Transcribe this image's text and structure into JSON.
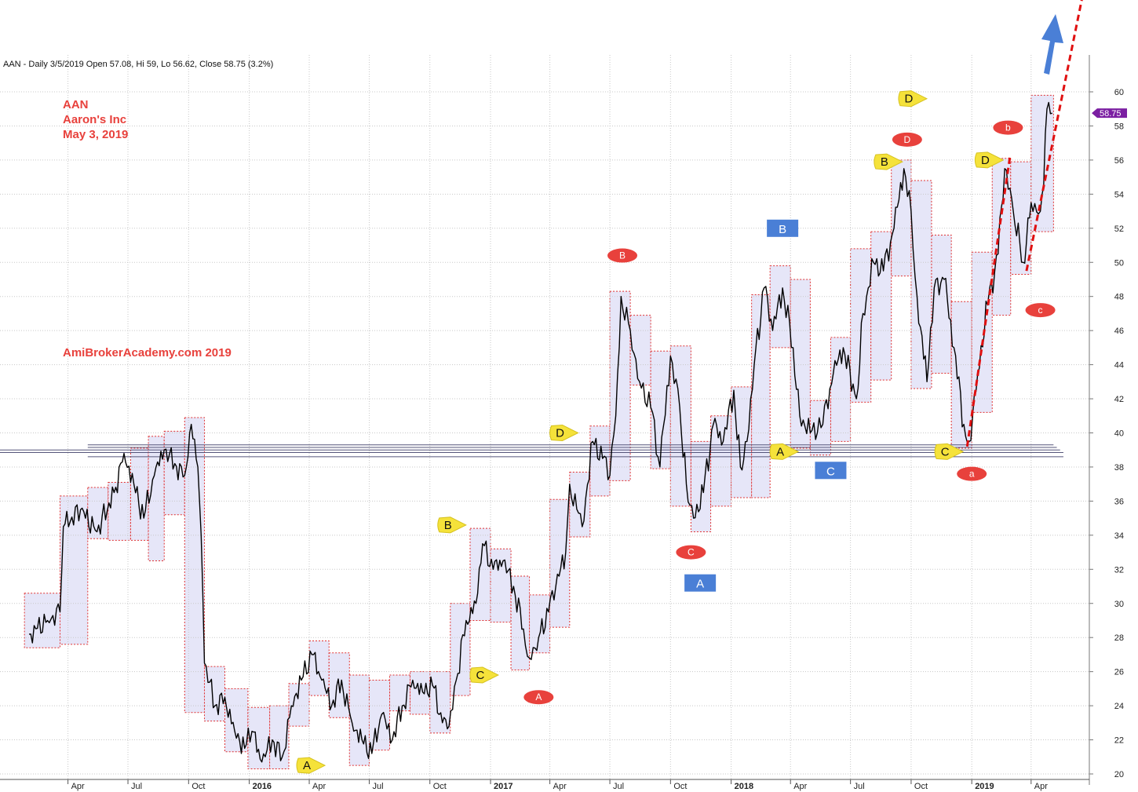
{
  "header": "AAN - Daily 3/5/2019 Open 57.08, Hi 59, Lo 56.62, Close 58.75 (3.2%)",
  "annotations": {
    "ticker": "AAN",
    "company": "Aaron's Inc",
    "date": "May 3, 2019",
    "watermark": "AmiBrokerAcademy.com  2019"
  },
  "colors": {
    "price": "#000000",
    "box_fill": "#e6e6f8",
    "box_border": "#e03030",
    "label_red": "#e8413c",
    "label_yellow": "#f5e23a",
    "label_blue": "#4a7fd6",
    "trend": "#e01010",
    "arrow": "#4a7fd6",
    "last_price": "#7b1fa2",
    "support": "#55557a"
  },
  "chart_data": {
    "type": "line",
    "title": "AAN - Daily 3/5/2019 Open 57.08, Hi 59, Lo 56.62, Close 58.75 (3.2%)",
    "ylim": [
      19.3,
      61.5
    ],
    "y_ticks": [
      20,
      22,
      24,
      26,
      28,
      30,
      32,
      34,
      36,
      38,
      40,
      42,
      44,
      46,
      48,
      50,
      52,
      54,
      56,
      58,
      60
    ],
    "x_ticks": [
      "Apr",
      "Jul",
      "Oct",
      "2016",
      "Apr",
      "Jul",
      "Oct",
      "2017",
      "Apr",
      "Jul",
      "Oct",
      "2018",
      "Apr",
      "Jul",
      "Oct",
      "2019",
      "Apr"
    ],
    "x_tick_dates": [
      "2015-04-01",
      "2015-07-01",
      "2015-10-01",
      "2016-01-01",
      "2016-04-01",
      "2016-07-01",
      "2016-10-01",
      "2017-01-01",
      "2017-04-01",
      "2017-07-01",
      "2017-10-01",
      "2018-01-01",
      "2018-04-01",
      "2018-07-01",
      "2018-10-01",
      "2019-01-01",
      "2019-04-01"
    ],
    "grid": true,
    "last_price": "58.75",
    "series": [
      {
        "name": "AAN",
        "points": [
          [
            "2015-02-01",
            28.2
          ],
          [
            "2015-03-01",
            29.0
          ],
          [
            "2015-03-20",
            29.5
          ],
          [
            "2015-03-25",
            34.5
          ],
          [
            "2015-04-20",
            35.5
          ],
          [
            "2015-05-15",
            34.2
          ],
          [
            "2015-06-10",
            36.5
          ],
          [
            "2015-06-25",
            38.8
          ],
          [
            "2015-07-10",
            37.0
          ],
          [
            "2015-07-25",
            35.0
          ],
          [
            "2015-08-10",
            37.5
          ],
          [
            "2015-08-25",
            39.0
          ],
          [
            "2015-09-10",
            38.2
          ],
          [
            "2015-09-25",
            37.5
          ],
          [
            "2015-10-05",
            40.5
          ],
          [
            "2015-10-15",
            38.0
          ],
          [
            "2015-10-20",
            34.0
          ],
          [
            "2015-10-25",
            26.5
          ],
          [
            "2015-11-10",
            24.0
          ],
          [
            "2015-11-25",
            24.5
          ],
          [
            "2015-12-10",
            22.5
          ],
          [
            "2015-12-25",
            21.5
          ],
          [
            "2016-01-05",
            22.5
          ],
          [
            "2016-01-20",
            20.7
          ],
          [
            "2016-02-05",
            22.0
          ],
          [
            "2016-02-20",
            21.0
          ],
          [
            "2016-03-05",
            24.0
          ],
          [
            "2016-03-20",
            25.5
          ],
          [
            "2016-04-05",
            27.0
          ],
          [
            "2016-04-20",
            25.5
          ],
          [
            "2016-05-05",
            24.0
          ],
          [
            "2016-05-20",
            25.5
          ],
          [
            "2016-06-05",
            23.0
          ],
          [
            "2016-06-20",
            22.0
          ],
          [
            "2016-07-05",
            21.2
          ],
          [
            "2016-07-20",
            23.5
          ],
          [
            "2016-08-05",
            22.0
          ],
          [
            "2016-08-20",
            24.0
          ],
          [
            "2016-09-05",
            25.5
          ],
          [
            "2016-09-20",
            24.8
          ],
          [
            "2016-10-05",
            25.2
          ],
          [
            "2016-10-20",
            23.0
          ],
          [
            "2016-10-30",
            22.8
          ],
          [
            "2016-11-10",
            25.5
          ],
          [
            "2016-11-25",
            29.0
          ],
          [
            "2016-12-10",
            30.0
          ],
          [
            "2016-12-20",
            33.5
          ],
          [
            "2017-01-05",
            32.0
          ],
          [
            "2017-01-20",
            32.5
          ],
          [
            "2017-02-05",
            31.0
          ],
          [
            "2017-02-20",
            28.5
          ],
          [
            "2017-03-01",
            26.8
          ],
          [
            "2017-03-15",
            28.0
          ],
          [
            "2017-03-30",
            29.5
          ],
          [
            "2017-04-10",
            31.0
          ],
          [
            "2017-04-25",
            33.0
          ],
          [
            "2017-05-01",
            37.0
          ],
          [
            "2017-05-20",
            34.5
          ],
          [
            "2017-06-05",
            39.5
          ],
          [
            "2017-06-20",
            38.5
          ],
          [
            "2017-07-01",
            37.5
          ],
          [
            "2017-07-10",
            41.0
          ],
          [
            "2017-07-18",
            48.0
          ],
          [
            "2017-08-01",
            46.0
          ],
          [
            "2017-08-15",
            43.0
          ],
          [
            "2017-09-01",
            41.5
          ],
          [
            "2017-09-15",
            38.0
          ],
          [
            "2017-10-01",
            44.5
          ],
          [
            "2017-10-15",
            41.5
          ],
          [
            "2017-10-25",
            37.0
          ],
          [
            "2017-11-05",
            35.0
          ],
          [
            "2017-11-20",
            36.5
          ],
          [
            "2017-12-05",
            40.5
          ],
          [
            "2017-12-20",
            39.5
          ],
          [
            "2018-01-05",
            42.5
          ],
          [
            "2018-01-15",
            38.0
          ],
          [
            "2018-01-25",
            39.5
          ],
          [
            "2018-02-05",
            44.0
          ],
          [
            "2018-02-20",
            48.5
          ],
          [
            "2018-03-05",
            46.0
          ],
          [
            "2018-03-20",
            48.5
          ],
          [
            "2018-04-05",
            45.0
          ],
          [
            "2018-04-15",
            41.0
          ],
          [
            "2018-05-01",
            40.0
          ],
          [
            "2018-05-20",
            40.5
          ],
          [
            "2018-06-05",
            43.5
          ],
          [
            "2018-06-20",
            45.0
          ],
          [
            "2018-07-10",
            42.0
          ],
          [
            "2018-07-20",
            47.0
          ],
          [
            "2018-08-05",
            50.0
          ],
          [
            "2018-08-20",
            49.5
          ],
          [
            "2018-09-05",
            52.0
          ],
          [
            "2018-09-20",
            55.5
          ],
          [
            "2018-10-01",
            53.0
          ],
          [
            "2018-10-10",
            48.0
          ],
          [
            "2018-10-25",
            43.0
          ],
          [
            "2018-11-05",
            48.5
          ],
          [
            "2018-11-20",
            49.0
          ],
          [
            "2018-12-05",
            45.0
          ],
          [
            "2018-12-20",
            40.5
          ],
          [
            "2018-12-28",
            39.5
          ],
          [
            "2019-01-10",
            43.5
          ],
          [
            "2019-01-25",
            47.5
          ],
          [
            "2019-02-10",
            50.5
          ],
          [
            "2019-02-20",
            55.5
          ],
          [
            "2019-03-05",
            53.0
          ],
          [
            "2019-03-20",
            50.0
          ],
          [
            "2019-04-01",
            53.5
          ],
          [
            "2019-04-15",
            53.0
          ],
          [
            "2019-04-20",
            54.5
          ],
          [
            "2019-04-25",
            59.0
          ],
          [
            "2019-05-03",
            58.75
          ]
        ]
      }
    ]
  },
  "boxes": [
    {
      "from": "2015-01-25",
      "to": "2015-03-20",
      "low": 27.4,
      "high": 30.6
    },
    {
      "from": "2015-03-20",
      "to": "2015-05-01",
      "low": 27.6,
      "high": 36.3
    },
    {
      "from": "2015-05-01",
      "to": "2015-06-01",
      "low": 33.8,
      "high": 36.8
    },
    {
      "from": "2015-06-01",
      "to": "2015-07-05",
      "low": 33.7,
      "high": 37.1
    },
    {
      "from": "2015-07-05",
      "to": "2015-08-01",
      "low": 33.7,
      "high": 39.1
    },
    {
      "from": "2015-08-01",
      "to": "2015-08-25",
      "low": 32.5,
      "high": 39.8
    },
    {
      "from": "2015-08-25",
      "to": "2015-09-25",
      "low": 35.2,
      "high": 40.1
    },
    {
      "from": "2015-09-25",
      "to": "2015-10-25",
      "low": 23.6,
      "high": 40.9
    },
    {
      "from": "2015-10-25",
      "to": "2015-11-25",
      "low": 23.1,
      "high": 26.3
    },
    {
      "from": "2015-11-25",
      "to": "2015-12-30",
      "low": 21.3,
      "high": 25.0
    },
    {
      "from": "2015-12-30",
      "to": "2016-02-01",
      "low": 20.3,
      "high": 23.9
    },
    {
      "from": "2016-02-01",
      "to": "2016-03-01",
      "low": 20.3,
      "high": 24.0
    },
    {
      "from": "2016-03-01",
      "to": "2016-04-01",
      "low": 22.8,
      "high": 25.3
    },
    {
      "from": "2016-04-01",
      "to": "2016-05-01",
      "low": 24.6,
      "high": 27.8
    },
    {
      "from": "2016-05-01",
      "to": "2016-06-01",
      "low": 23.3,
      "high": 27.1
    },
    {
      "from": "2016-06-01",
      "to": "2016-07-01",
      "low": 20.5,
      "high": 25.8
    },
    {
      "from": "2016-07-01",
      "to": "2016-08-01",
      "low": 21.4,
      "high": 25.5
    },
    {
      "from": "2016-08-01",
      "to": "2016-09-01",
      "low": 23.7,
      "high": 25.8
    },
    {
      "from": "2016-09-01",
      "to": "2016-10-01",
      "low": 23.5,
      "high": 26.0
    },
    {
      "from": "2016-10-01",
      "to": "2016-11-01",
      "low": 22.4,
      "high": 26.0
    },
    {
      "from": "2016-11-01",
      "to": "2016-12-01",
      "low": 24.6,
      "high": 30.0
    },
    {
      "from": "2016-12-01",
      "to": "2017-01-01",
      "low": 29.0,
      "high": 34.4
    },
    {
      "from": "2017-01-01",
      "to": "2017-02-01",
      "low": 28.9,
      "high": 33.2
    },
    {
      "from": "2017-02-01",
      "to": "2017-03-01",
      "low": 26.1,
      "high": 31.6
    },
    {
      "from": "2017-03-01",
      "to": "2017-04-01",
      "low": 27.1,
      "high": 30.5
    },
    {
      "from": "2017-04-01",
      "to": "2017-05-01",
      "low": 28.6,
      "high": 36.1
    },
    {
      "from": "2017-05-01",
      "to": "2017-06-01",
      "low": 33.9,
      "high": 37.7
    },
    {
      "from": "2017-06-01",
      "to": "2017-07-01",
      "low": 36.3,
      "high": 40.4
    },
    {
      "from": "2017-07-01",
      "to": "2017-08-01",
      "low": 37.2,
      "high": 48.3
    },
    {
      "from": "2017-08-01",
      "to": "2017-09-01",
      "low": 42.8,
      "high": 46.9
    },
    {
      "from": "2017-09-01",
      "to": "2017-10-01",
      "low": 37.9,
      "high": 44.8
    },
    {
      "from": "2017-10-01",
      "to": "2017-11-01",
      "low": 35.7,
      "high": 45.1
    },
    {
      "from": "2017-11-01",
      "to": "2017-12-01",
      "low": 34.2,
      "high": 39.5
    },
    {
      "from": "2017-12-01",
      "to": "2018-01-01",
      "low": 35.7,
      "high": 41.0
    },
    {
      "from": "2018-01-01",
      "to": "2018-02-01",
      "low": 36.2,
      "high": 42.7
    },
    {
      "from": "2018-02-01",
      "to": "2018-03-01",
      "low": 36.2,
      "high": 48.1
    },
    {
      "from": "2018-03-01",
      "to": "2018-04-01",
      "low": 45.0,
      "high": 49.8
    },
    {
      "from": "2018-04-01",
      "to": "2018-05-01",
      "low": 39.1,
      "high": 49.0
    },
    {
      "from": "2018-05-01",
      "to": "2018-06-01",
      "low": 38.7,
      "high": 41.9
    },
    {
      "from": "2018-06-01",
      "to": "2018-07-01",
      "low": 39.5,
      "high": 45.6
    },
    {
      "from": "2018-07-01",
      "to": "2018-08-01",
      "low": 41.8,
      "high": 50.8
    },
    {
      "from": "2018-08-01",
      "to": "2018-09-01",
      "low": 43.1,
      "high": 51.8
    },
    {
      "from": "2018-09-01",
      "to": "2018-10-01",
      "low": 49.2,
      "high": 56.0
    },
    {
      "from": "2018-10-01",
      "to": "2018-11-01",
      "low": 42.6,
      "high": 54.8
    },
    {
      "from": "2018-11-01",
      "to": "2018-12-01",
      "low": 43.5,
      "high": 51.6
    },
    {
      "from": "2018-12-01",
      "to": "2019-01-01",
      "low": 39.1,
      "high": 47.7
    },
    {
      "from": "2019-01-01",
      "to": "2019-02-01",
      "low": 41.2,
      "high": 50.6
    },
    {
      "from": "2019-02-01",
      "to": "2019-03-01",
      "low": 46.9,
      "high": 56.1
    },
    {
      "from": "2019-03-01",
      "to": "2019-04-01",
      "low": 49.3,
      "high": 55.9
    },
    {
      "from": "2019-04-01",
      "to": "2019-05-05",
      "low": 51.8,
      "high": 59.8
    }
  ],
  "support_lines": [
    {
      "from": "2014-12-01",
      "to": "2019-05-20",
      "y": 38.85
    },
    {
      "from": "2014-12-01",
      "to": "2019-05-15",
      "y": 39.0
    },
    {
      "from": "2015-05-01",
      "to": "2019-05-10",
      "y": 39.15
    },
    {
      "from": "2015-05-01",
      "to": "2019-05-05",
      "y": 39.3
    },
    {
      "from": "2015-05-01",
      "to": "2019-05-20",
      "y": 38.6
    }
  ],
  "trend_lines": [
    {
      "x1": "2018-12-25",
      "y1": 39.2,
      "x2": "2019-02-28",
      "y2": 56.2
    },
    {
      "x1": "2019-03-25",
      "y1": 49.5,
      "x2": "2019-06-20",
      "y2": 66.0
    }
  ],
  "labels": [
    {
      "text": "A",
      "shape": "pennant",
      "date": "2016-04-01",
      "y": 20.5
    },
    {
      "text": "B",
      "shape": "pennant",
      "date": "2016-11-01",
      "y": 34.6
    },
    {
      "text": "C",
      "shape": "pennant",
      "date": "2016-12-20",
      "y": 25.8
    },
    {
      "text": "D",
      "shape": "pennant",
      "date": "2017-04-20",
      "y": 40.0
    },
    {
      "text": "A",
      "shape": "ellipse",
      "date": "2017-03-15",
      "y": 24.5
    },
    {
      "text": "B",
      "shape": "ellipse",
      "date": "2017-07-20",
      "y": 50.4
    },
    {
      "text": "C",
      "shape": "ellipse",
      "date": "2017-11-01",
      "y": 33.0
    },
    {
      "text": "D",
      "shape": "ellipse",
      "date": "2018-09-25",
      "y": 57.2
    },
    {
      "text": "A",
      "shape": "rect",
      "date": "2017-11-15",
      "y": 31.2
    },
    {
      "text": "B",
      "shape": "rect",
      "date": "2018-03-20",
      "y": 52.0
    },
    {
      "text": "C",
      "shape": "rect",
      "date": "2018-06-01",
      "y": 37.8
    },
    {
      "text": "A",
      "shape": "pennant",
      "date": "2018-03-20",
      "y": 38.9
    },
    {
      "text": "B",
      "shape": "pennant",
      "date": "2018-08-25",
      "y": 55.9
    },
    {
      "text": "C",
      "shape": "pennant",
      "date": "2018-11-25",
      "y": 38.9
    },
    {
      "text": "D",
      "shape": "pennant",
      "date": "2018-10-01",
      "y": 59.6
    },
    {
      "text": "D",
      "shape": "pennant",
      "date": "2019-01-25",
      "y": 56.0
    },
    {
      "text": "a",
      "shape": "ellipse",
      "date": "2019-01-01",
      "y": 37.6
    },
    {
      "text": "b",
      "shape": "ellipse",
      "date": "2019-02-25",
      "y": 57.9
    },
    {
      "text": "c",
      "shape": "ellipse",
      "date": "2019-04-15",
      "y": 47.2
    }
  ]
}
